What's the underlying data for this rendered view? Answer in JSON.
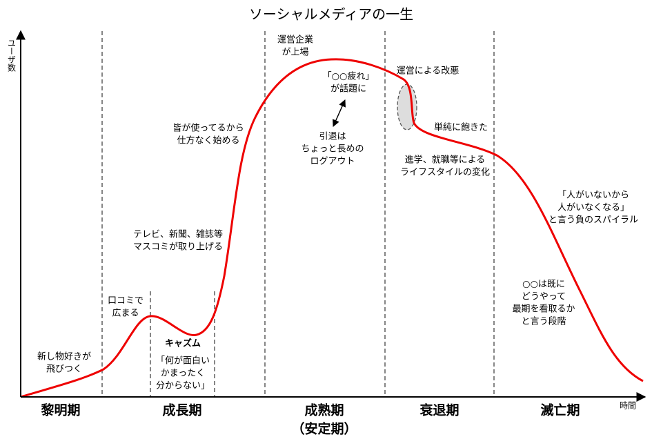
{
  "title": "ソーシャルメディアの一生",
  "y_label": "ユーザ数",
  "x_label": "時間",
  "phases": [
    "黎明期",
    "成長期",
    "成熟期",
    "（安定期）",
    "衰退期",
    "滅亡期"
  ],
  "annotations": [
    {
      "lines": [
        "新し物好きが",
        "飛びつく"
      ]
    },
    {
      "lines": [
        "口コミで",
        "広まる"
      ]
    },
    {
      "lines": [
        "キャズム"
      ]
    },
    {
      "lines": [
        "「何が面白い",
        "かまったく",
        "分からない」"
      ]
    },
    {
      "lines": [
        "テレビ、新聞、雑誌等",
        "マスコミが取り上げる"
      ]
    },
    {
      "lines": [
        "皆が使ってるから",
        "仕方なく始める"
      ]
    },
    {
      "lines": [
        "運営企業",
        "が上場"
      ]
    },
    {
      "lines": [
        "「○○疲れ」",
        "が話題に"
      ]
    },
    {
      "lines": [
        "引退は",
        "ちょっと長めの",
        "ログアウト"
      ]
    },
    {
      "lines": [
        "運営による改悪"
      ]
    },
    {
      "lines": [
        "単純に飽きた"
      ]
    },
    {
      "lines": [
        "進学、就職等による",
        "ライフスタイルの変化"
      ]
    },
    {
      "lines": [
        "「人がいないから",
        "人がいなくなる」",
        "と言う負のスパイラル"
      ]
    },
    {
      "lines": [
        "○○は既に",
        "どうやって",
        "最期を看取るか",
        "と言う段階"
      ]
    }
  ]
}
